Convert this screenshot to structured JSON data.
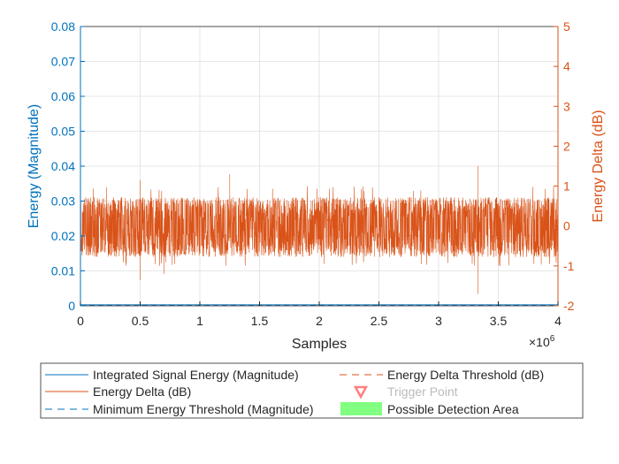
{
  "chart_data": {
    "type": "line",
    "xlabel": "Samples",
    "x_exponent_label": "×10",
    "x_exponent": "6",
    "xlim": [
      0,
      4000000
    ],
    "xticks": [
      "0",
      "0.5",
      "1",
      "1.5",
      "2",
      "2.5",
      "3",
      "3.5",
      "4"
    ],
    "ylabel_left": "Energy (Magnitude)",
    "ylim_left": [
      0,
      0.08
    ],
    "yticks_left": [
      "0",
      "0.01",
      "0.02",
      "0.03",
      "0.04",
      "0.05",
      "0.06",
      "0.07",
      "0.08"
    ],
    "ylabel_right": "Energy Delta (dB)",
    "ylim_right": [
      -2,
      5
    ],
    "yticks_right": [
      "-2",
      "-1",
      "0",
      "1",
      "2",
      "3",
      "4",
      "5"
    ],
    "grid": true,
    "legend_position": "bottom",
    "colors": {
      "left_axis": "#0072BD",
      "right_axis": "#D95319",
      "signal": "#0072BD",
      "delta": "#D95319",
      "trigger": "#FF8080",
      "detection": "#80FF80"
    },
    "series": [
      {
        "name": "Integrated Signal Energy (Magnitude)",
        "axis": "left",
        "style": "solid",
        "approx_value": 0.0003
      },
      {
        "name": "Energy Delta (dB)",
        "axis": "right",
        "style": "solid",
        "envelope_x": [
          0,
          250000,
          500000,
          700000,
          1000000,
          1250000,
          1500000,
          2000000,
          2500000,
          3000000,
          3330000,
          3500000,
          4000000
        ],
        "envelope_upper": [
          0.85,
          0.75,
          1.15,
          0.8,
          0.75,
          1.3,
          0.8,
          0.8,
          0.85,
          0.8,
          1.5,
          0.85,
          0.9
        ],
        "envelope_lower": [
          -0.9,
          -0.85,
          -1.35,
          -1.2,
          -0.9,
          -0.85,
          -0.95,
          -0.85,
          -0.9,
          -0.85,
          -1.7,
          -0.9,
          -0.9
        ]
      },
      {
        "name": "Minimum Energy Threshold (Magnitude)",
        "axis": "left",
        "style": "dashed",
        "approx_value": 0.0002
      },
      {
        "name": "Energy Delta Threshold (dB)",
        "axis": "right",
        "style": "dashed"
      },
      {
        "name": "Trigger Point",
        "style": "marker-triangle-down",
        "dimmed": true
      },
      {
        "name": "Possible Detection Area",
        "style": "area"
      }
    ]
  }
}
